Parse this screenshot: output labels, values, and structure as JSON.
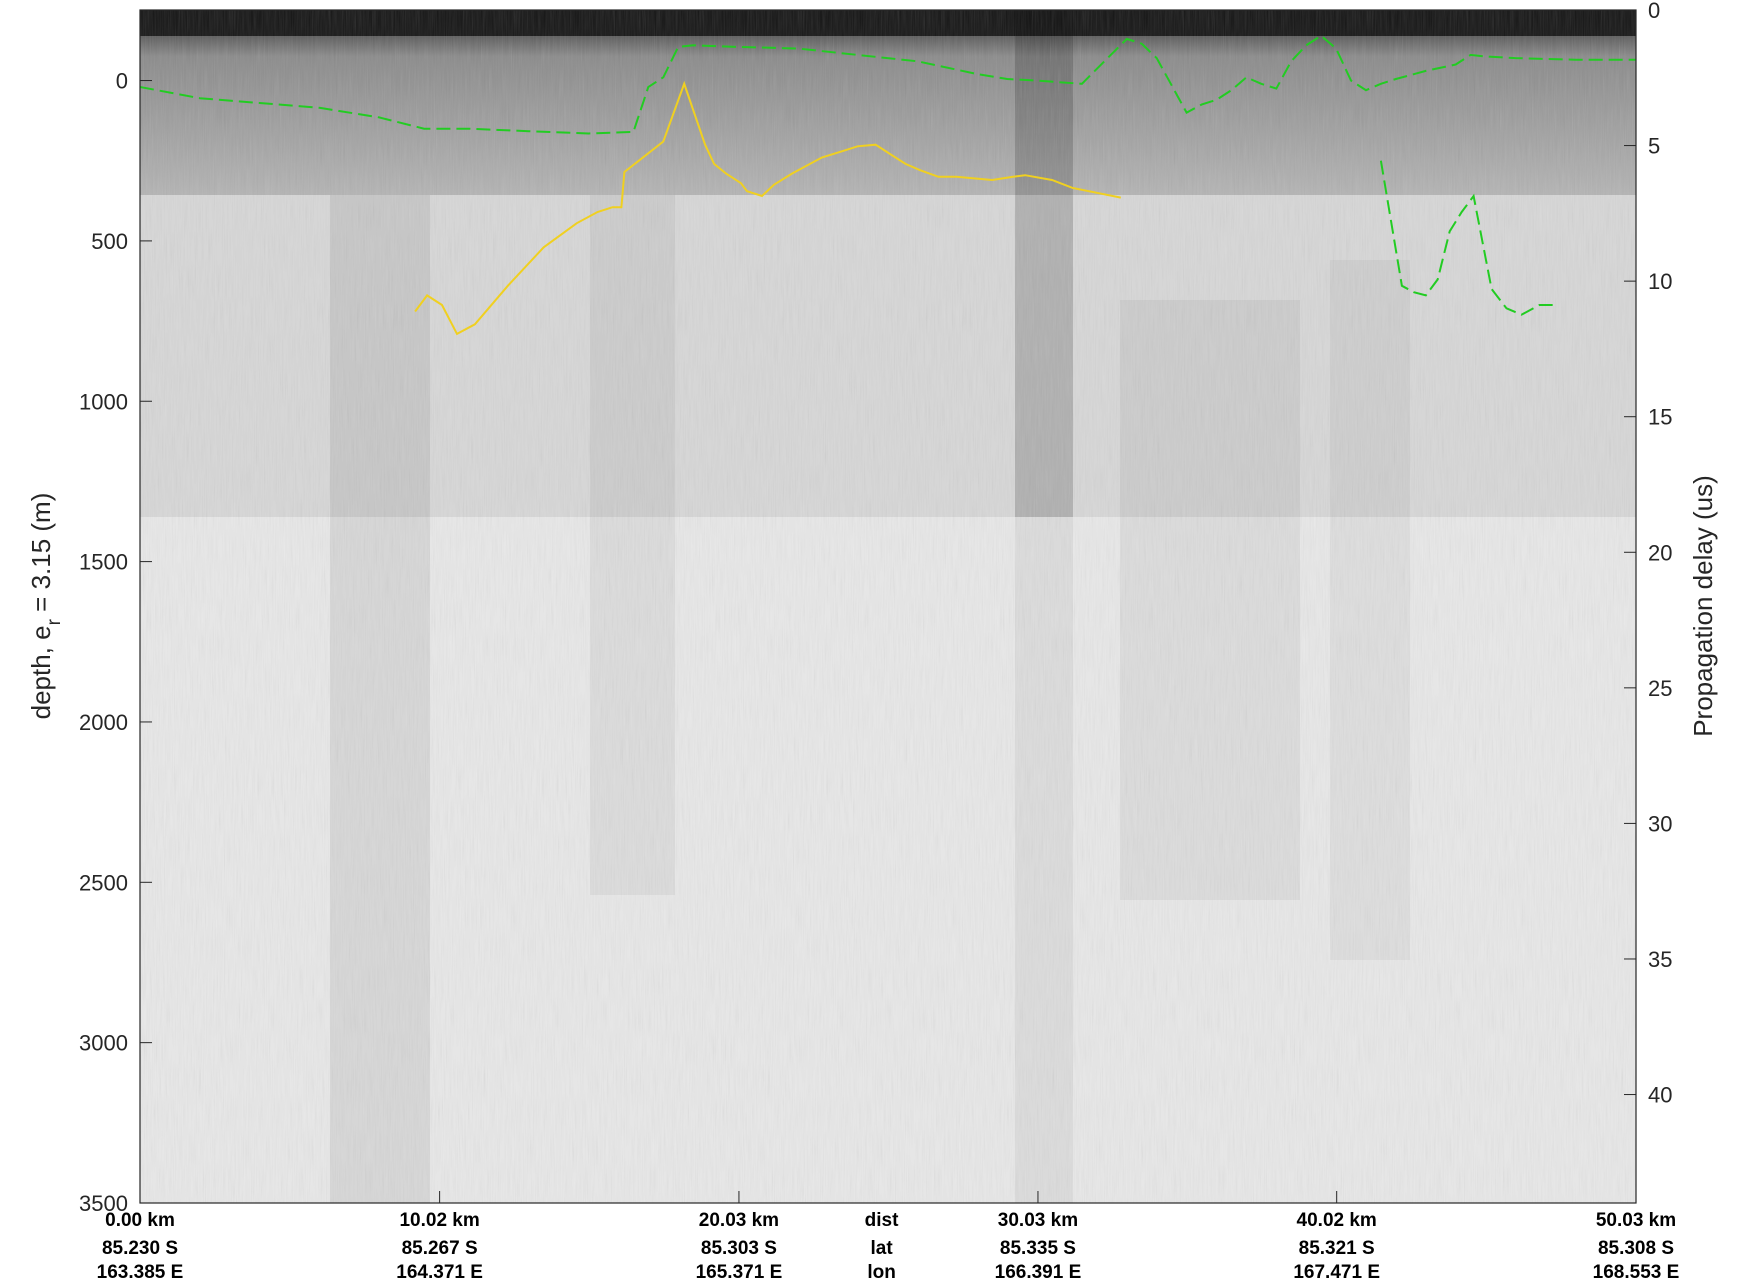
{
  "chart_data": {
    "type": "line",
    "title": "",
    "ylabel_left": "depth, e",
    "ylabel_left_sub": "r",
    "ylabel_left_suffix": " = 3.15 (m)",
    "ylabel_right": "Propagation delay (us)",
    "ylim_left": [
      -220,
      3500
    ],
    "ylim_right": [
      0,
      44
    ],
    "yticks_left": [
      0,
      500,
      1000,
      1500,
      2000,
      2500,
      3000,
      3500
    ],
    "yticks_right": [
      0,
      5,
      10,
      15,
      20,
      25,
      30,
      35,
      40
    ],
    "xlim_km": [
      0,
      50.03
    ],
    "x_ticks": [
      {
        "x": 0.0,
        "dist": "0.00 km",
        "lat": "85.230 S",
        "lon": "163.385 E"
      },
      {
        "x": 10.02,
        "dist": "10.02 km",
        "lat": "85.267 S",
        "lon": "164.371 E"
      },
      {
        "x": 20.03,
        "dist": "20.03 km",
        "lat": "85.303 S",
        "lon": "165.371 E"
      },
      {
        "x": 30.03,
        "dist": "30.03 km",
        "lat": "85.335 S",
        "lon": "166.391 E"
      },
      {
        "x": 40.02,
        "dist": "40.02 km",
        "lat": "85.321 S",
        "lon": "167.471 E"
      },
      {
        "x": 50.03,
        "dist": "50.03 km",
        "lat": "85.308 S",
        "lon": "168.553 E"
      }
    ],
    "row_labels": {
      "dist": "dist",
      "lat": "lat",
      "lon": "lon"
    },
    "row_label_x": 24.8,
    "colors": {
      "surface": "#22cc22",
      "bed": "#f0d020",
      "grid_dark": "#1a1a1a",
      "background": "#e6e6e6"
    },
    "series": [
      {
        "key": "surface",
        "style": "dashed",
        "x": [
          0,
          2,
          4,
          6,
          8,
          9.5,
          11,
          13,
          15,
          16.5,
          17,
          17.5,
          18,
          18.5,
          19,
          20,
          22,
          24,
          26,
          28,
          29,
          30,
          31.5,
          33,
          33.5,
          34,
          35,
          35.5,
          36,
          36.5,
          37,
          37.5,
          38,
          38.5,
          39,
          39.5,
          40,
          40.5,
          41,
          41.5,
          42,
          43,
          44,
          44.5,
          45,
          46,
          48,
          50.03
        ],
        "y": [
          20,
          55,
          70,
          85,
          115,
          150,
          150,
          158,
          165,
          160,
          20,
          -10,
          -105,
          -110,
          -108,
          -105,
          -100,
          -80,
          -60,
          -20,
          -5,
          0,
          10,
          -130,
          -115,
          -70,
          100,
          75,
          60,
          30,
          -10,
          10,
          25,
          -60,
          -110,
          -140,
          -100,
          0,
          30,
          10,
          -5,
          -30,
          -50,
          -80,
          -75,
          -70,
          -65,
          -65
        ]
      },
      {
        "key": "bed",
        "style": "solid",
        "x": [
          9.2,
          9.6,
          10.1,
          10.6,
          11.2,
          12.3,
          13.5,
          14.6,
          15.3,
          15.8,
          16.1,
          16.2,
          17.5,
          18.2,
          18.9,
          19.2,
          19.6,
          20.1,
          20.3,
          20.8,
          21.2,
          21.8,
          22.8,
          23.5,
          24.0,
          24.6,
          25.1,
          25.6,
          26.1,
          26.7,
          27.3,
          27.9,
          28.5,
          29.2,
          29.6,
          30.5,
          31.2,
          32.0,
          32.8
        ],
        "y": [
          720,
          670,
          700,
          790,
          760,
          640,
          520,
          445,
          410,
          395,
          395,
          285,
          190,
          10,
          200,
          260,
          290,
          320,
          345,
          360,
          325,
          290,
          240,
          220,
          205,
          200,
          230,
          260,
          280,
          300,
          300,
          305,
          310,
          300,
          295,
          310,
          335,
          350,
          365
        ]
      },
      {
        "key": "bed_right",
        "style": "dashed",
        "x": [
          41.5,
          42.2,
          42.6,
          43.0,
          43.4,
          43.8,
          44.2,
          44.6,
          45.2,
          45.7,
          46.2,
          46.8,
          47.4
        ],
        "y": [
          250,
          640,
          660,
          670,
          620,
          470,
          410,
          360,
          650,
          710,
          730,
          700,
          700
        ]
      }
    ]
  }
}
